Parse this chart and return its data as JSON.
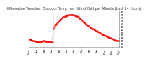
{
  "title": "Milwaukee Weather  Outdoor Temp (vs)  Wind Chill per Minute (Last 24 Hours)",
  "bg_color": "#ffffff",
  "line_color": "#ff0000",
  "grid_color": "#aaaaaa",
  "yticks": [
    10,
    15,
    20,
    25,
    30,
    35,
    40,
    45,
    50,
    55,
    60,
    65,
    70
  ],
  "ylim": [
    8,
    72
  ],
  "xlim": [
    0,
    143
  ],
  "x_values": [
    0,
    1,
    2,
    3,
    4,
    5,
    6,
    7,
    8,
    9,
    10,
    11,
    12,
    13,
    14,
    15,
    16,
    17,
    18,
    19,
    20,
    21,
    22,
    23,
    24,
    25,
    26,
    27,
    28,
    29,
    30,
    31,
    32,
    33,
    34,
    35,
    36,
    37,
    38,
    39,
    40,
    41,
    42,
    43,
    44,
    45,
    46,
    47,
    48,
    49,
    50,
    51,
    52,
    53,
    54,
    55,
    56,
    57,
    58,
    59,
    60,
    61,
    62,
    63,
    64,
    65,
    66,
    67,
    68,
    69,
    70,
    71,
    72,
    73,
    74,
    75,
    76,
    77,
    78,
    79,
    80,
    81,
    82,
    83,
    84,
    85,
    86,
    87,
    88,
    89,
    90,
    91,
    92,
    93,
    94,
    95,
    96,
    97,
    98,
    99,
    100,
    101,
    102,
    103,
    104,
    105,
    106,
    107,
    108,
    109,
    110,
    111,
    112,
    113,
    114,
    115,
    116,
    117,
    118,
    119,
    120,
    121,
    122,
    123,
    124,
    125,
    126,
    127,
    128,
    129,
    130,
    131,
    132,
    133,
    134,
    135,
    136,
    137,
    138,
    139,
    140,
    141,
    142,
    143
  ],
  "y_values": [
    22,
    22,
    21,
    21,
    20,
    20,
    19,
    19,
    19,
    18,
    18,
    18,
    17,
    17,
    18,
    17,
    17,
    17,
    17,
    18,
    18,
    18,
    18,
    19,
    19,
    18,
    18,
    18,
    18,
    17,
    17,
    17,
    17,
    17,
    17,
    17,
    17,
    17,
    40,
    42,
    44,
    46,
    47,
    49,
    50,
    52,
    53,
    54,
    55,
    56,
    57,
    58,
    59,
    60,
    61,
    61,
    62,
    63,
    63,
    63,
    64,
    64,
    65,
    65,
    65,
    65,
    65,
    65,
    65,
    65,
    65,
    65,
    64,
    64,
    63,
    62,
    62,
    61,
    61,
    60,
    59,
    58,
    57,
    56,
    55,
    54,
    53,
    52,
    51,
    50,
    49,
    48,
    47,
    46,
    45,
    45,
    44,
    43,
    43,
    42,
    41,
    41,
    40,
    39,
    39,
    38,
    37,
    37,
    36,
    35,
    35,
    34,
    34,
    33,
    32,
    32,
    31,
    30,
    30,
    29,
    29,
    28,
    28,
    27,
    27,
    26,
    26,
    25,
    25,
    24,
    24,
    23,
    23,
    22,
    22,
    21,
    21,
    21,
    20,
    20,
    20,
    19,
    19,
    19
  ],
  "vline_x": 38,
  "title_fontsize": 3.5,
  "tick_fontsize": 3.0,
  "markersize": 1.2,
  "linewidth": 0.6,
  "xtick_positions": [
    0,
    12,
    24,
    36,
    48,
    60,
    72,
    84,
    96,
    108,
    120,
    132,
    143
  ],
  "xtick_labels": [
    "12a",
    "1a",
    "2a",
    "3a",
    "4a",
    "5a",
    "6a",
    "7a",
    "8a",
    "9a",
    "10a",
    "11a",
    "12p"
  ]
}
